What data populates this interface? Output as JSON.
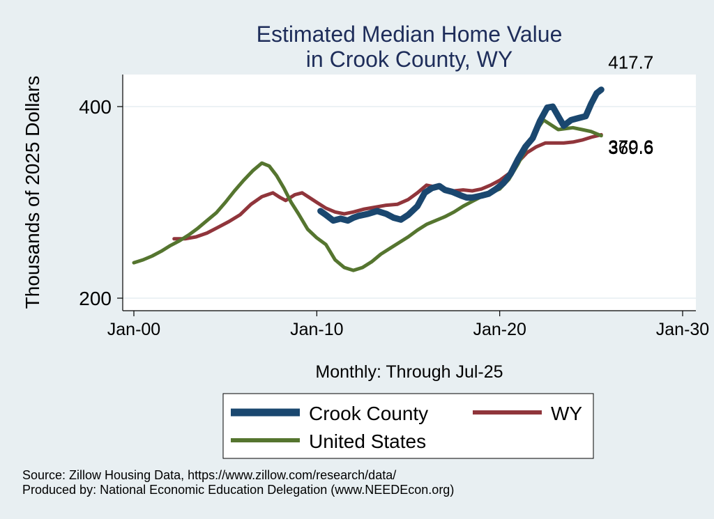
{
  "chart_data": {
    "type": "line",
    "title_line1": "Estimated Median Home Value",
    "title_line2": "in Crook County, WY",
    "xlabel": "Monthly: Through Jul-25",
    "ylabel": "Thousands of 2025 Dollars",
    "xlim": [
      2000,
      2030
    ],
    "ylim": [
      191,
      432
    ],
    "x_ticks": [
      {
        "value": 2000,
        "label": "Jan-00"
      },
      {
        "value": 2010,
        "label": "Jan-10"
      },
      {
        "value": 2020,
        "label": "Jan-20"
      },
      {
        "value": 2030,
        "label": "Jan-30"
      }
    ],
    "y_ticks": [
      {
        "value": 200,
        "label": "200"
      },
      {
        "value": 400,
        "label": "400"
      }
    ],
    "grid": true,
    "series": [
      {
        "name": "Crook County",
        "color": "#1a476f",
        "end_label": "417.7",
        "points": [
          [
            2010.2,
            291
          ],
          [
            2010.5,
            287
          ],
          [
            2010.9,
            281
          ],
          [
            2011.3,
            283
          ],
          [
            2011.7,
            281
          ],
          [
            2012.0,
            284
          ],
          [
            2012.3,
            286
          ],
          [
            2012.8,
            288
          ],
          [
            2013.3,
            291
          ],
          [
            2013.8,
            288
          ],
          [
            2014.2,
            284
          ],
          [
            2014.6,
            282
          ],
          [
            2015.0,
            287
          ],
          [
            2015.5,
            296
          ],
          [
            2015.9,
            310
          ],
          [
            2016.3,
            315
          ],
          [
            2016.7,
            317
          ],
          [
            2017.0,
            313
          ],
          [
            2017.4,
            311
          ],
          [
            2017.9,
            307
          ],
          [
            2018.2,
            305
          ],
          [
            2018.5,
            305
          ],
          [
            2019.0,
            307
          ],
          [
            2019.4,
            309
          ],
          [
            2019.8,
            314
          ],
          [
            2020.2,
            320
          ],
          [
            2020.6,
            330
          ],
          [
            2021.0,
            345
          ],
          [
            2021.4,
            358
          ],
          [
            2021.8,
            367
          ],
          [
            2022.2,
            385
          ],
          [
            2022.6,
            399
          ],
          [
            2022.9,
            400
          ],
          [
            2023.2,
            390
          ],
          [
            2023.5,
            380
          ],
          [
            2023.9,
            386
          ],
          [
            2024.3,
            388
          ],
          [
            2024.7,
            390
          ],
          [
            2025.0,
            403
          ],
          [
            2025.3,
            414
          ],
          [
            2025.55,
            417.7
          ]
        ]
      },
      {
        "name": "WY",
        "color": "#90353b",
        "end_label": "370.6",
        "points": [
          [
            2002.2,
            262
          ],
          [
            2002.8,
            262
          ],
          [
            2003.4,
            264
          ],
          [
            2004.0,
            268
          ],
          [
            2004.6,
            274
          ],
          [
            2005.2,
            280
          ],
          [
            2005.8,
            287
          ],
          [
            2006.4,
            298
          ],
          [
            2007.0,
            306
          ],
          [
            2007.6,
            310
          ],
          [
            2008.0,
            305
          ],
          [
            2008.3,
            302
          ],
          [
            2008.8,
            308
          ],
          [
            2009.2,
            310
          ],
          [
            2009.6,
            305
          ],
          [
            2010.0,
            300
          ],
          [
            2010.5,
            294
          ],
          [
            2011.0,
            290
          ],
          [
            2011.5,
            288
          ],
          [
            2012.0,
            290
          ],
          [
            2012.6,
            293
          ],
          [
            2013.2,
            295
          ],
          [
            2013.8,
            297
          ],
          [
            2014.4,
            298
          ],
          [
            2015.0,
            303
          ],
          [
            2015.5,
            310
          ],
          [
            2016.0,
            318
          ],
          [
            2016.5,
            316
          ],
          [
            2017.0,
            314
          ],
          [
            2017.5,
            312
          ],
          [
            2018.0,
            313
          ],
          [
            2018.5,
            312
          ],
          [
            2019.0,
            314
          ],
          [
            2019.5,
            318
          ],
          [
            2020.0,
            323
          ],
          [
            2020.5,
            330
          ],
          [
            2021.0,
            342
          ],
          [
            2021.5,
            352
          ],
          [
            2022.0,
            358
          ],
          [
            2022.5,
            362
          ],
          [
            2023.0,
            362
          ],
          [
            2023.5,
            362
          ],
          [
            2024.0,
            363
          ],
          [
            2024.5,
            365
          ],
          [
            2025.0,
            368
          ],
          [
            2025.55,
            370.6
          ]
        ]
      },
      {
        "name": "United States",
        "color": "#55752f",
        "end_label": "369.6",
        "points": [
          [
            2000.0,
            237
          ],
          [
            2000.5,
            240
          ],
          [
            2001.0,
            244
          ],
          [
            2001.5,
            249
          ],
          [
            2002.0,
            255
          ],
          [
            2002.5,
            260
          ],
          [
            2003.0,
            266
          ],
          [
            2003.5,
            273
          ],
          [
            2004.0,
            281
          ],
          [
            2004.5,
            289
          ],
          [
            2005.0,
            300
          ],
          [
            2005.5,
            312
          ],
          [
            2006.0,
            323
          ],
          [
            2006.5,
            333
          ],
          [
            2007.0,
            341
          ],
          [
            2007.4,
            338
          ],
          [
            2007.8,
            328
          ],
          [
            2008.2,
            315
          ],
          [
            2008.6,
            300
          ],
          [
            2009.0,
            288
          ],
          [
            2009.5,
            272
          ],
          [
            2010.0,
            263
          ],
          [
            2010.5,
            256
          ],
          [
            2011.0,
            240
          ],
          [
            2011.5,
            232
          ],
          [
            2012.0,
            229
          ],
          [
            2012.5,
            232
          ],
          [
            2013.0,
            238
          ],
          [
            2013.5,
            246
          ],
          [
            2014.0,
            252
          ],
          [
            2014.5,
            258
          ],
          [
            2015.0,
            264
          ],
          [
            2015.5,
            271
          ],
          [
            2016.0,
            277
          ],
          [
            2016.5,
            281
          ],
          [
            2017.0,
            285
          ],
          [
            2017.5,
            290
          ],
          [
            2018.0,
            296
          ],
          [
            2018.5,
            301
          ],
          [
            2019.0,
            306
          ],
          [
            2019.5,
            310
          ],
          [
            2020.0,
            314
          ],
          [
            2020.5,
            324
          ],
          [
            2021.0,
            340
          ],
          [
            2021.5,
            358
          ],
          [
            2022.0,
            375
          ],
          [
            2022.4,
            386
          ],
          [
            2022.8,
            381
          ],
          [
            2023.2,
            376
          ],
          [
            2023.6,
            377
          ],
          [
            2024.0,
            378
          ],
          [
            2024.5,
            376
          ],
          [
            2025.0,
            374
          ],
          [
            2025.55,
            369.6
          ]
        ]
      }
    ],
    "legend": {
      "placement": "bottom",
      "items": [
        {
          "label": "Crook County",
          "color": "#1a476f"
        },
        {
          "label": "WY",
          "color": "#90353b"
        },
        {
          "label": "United States",
          "color": "#55752f"
        }
      ]
    },
    "source_line1": "Source: Zillow Housing Data, https://www.zillow.com/research/data/",
    "source_line2": "Produced by: National Economic Education Delegation (www.NEEDEcon.org)"
  }
}
